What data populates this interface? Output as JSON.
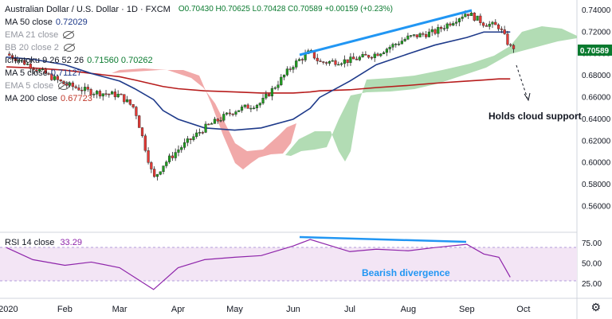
{
  "header": {
    "symbol": "Australian Dollar / U.S. Dollar · 1D · FXCM",
    "ohlc": "O0.70430 H0.70625 L0.70428 C0.70589 +0.00159 (+0.23%)"
  },
  "indicators": [
    {
      "name": "MA 50 close",
      "value": "0.72029",
      "color": "#1e3a8a",
      "hidden": false
    },
    {
      "name": "EMA 21 close",
      "value": "",
      "color": "#9598a1",
      "hidden": true
    },
    {
      "name": "BB 20 close 2",
      "value": "",
      "color": "#9598a1",
      "hidden": true
    },
    {
      "name": "Ichimoku 9 26 52 26",
      "value": "0.71560  0.70262",
      "color": "#0a7a2f",
      "hidden": false
    },
    {
      "name": "MA 5 close",
      "value": "0.71127",
      "color": "#1e3a8a",
      "hidden": false
    },
    {
      "name": "EMA 5 close",
      "value": "",
      "color": "#9598a1",
      "hidden": true
    },
    {
      "name": "MA 200 close",
      "value": "0.67723",
      "color": "#c0392b",
      "hidden": false
    }
  ],
  "rsi": {
    "name": "RSI 14 close",
    "value": "33.29"
  },
  "annotations": {
    "cloud": "Holds cloud support",
    "divergence": "Bearish divergence"
  },
  "price_tag": "0.70589",
  "colors": {
    "up": "#26a69a",
    "candle_up": "#1f9d1f",
    "candle_down": "#e53935",
    "trendline": "#2196f3",
    "ma50": "#1e3a8a",
    "ma200": "#b71c1c",
    "cloud_bull": "#a5d6a7",
    "cloud_bear": "#ef9a9a",
    "rsi_line": "#8e24aa",
    "rsi_band": "#f3e5f5"
  },
  "chart_data": [
    {
      "type": "candlestick",
      "title": "Australian Dollar / U.S. Dollar · 1D · FXCM",
      "x": [
        "2020-01-01",
        "2020-01-15",
        "2020-02-01",
        "2020-02-15",
        "2020-03-01",
        "2020-03-09",
        "2020-03-19",
        "2020-03-24",
        "2020-04-01",
        "2020-04-15",
        "2020-05-01",
        "2020-05-15",
        "2020-06-01",
        "2020-06-10",
        "2020-06-15",
        "2020-07-01",
        "2020-07-15",
        "2020-08-01",
        "2020-08-15",
        "2020-09-01",
        "2020-09-10",
        "2020-09-18",
        "2020-09-24"
      ],
      "close": [
        0.7,
        0.688,
        0.672,
        0.665,
        0.662,
        0.65,
        0.585,
        0.598,
        0.612,
        0.632,
        0.648,
        0.655,
        0.69,
        0.702,
        0.692,
        0.694,
        0.7,
        0.715,
        0.72,
        0.738,
        0.728,
        0.725,
        0.706
      ],
      "ma50": [
        0.697,
        0.695,
        0.69,
        0.682,
        0.675,
        0.668,
        0.658,
        0.648,
        0.64,
        0.632,
        0.63,
        0.632,
        0.64,
        0.65,
        0.66,
        0.675,
        0.69,
        0.7,
        0.708,
        0.715,
        0.72,
        0.72,
        0.72
      ],
      "ma200": [
        0.688,
        0.687,
        0.685,
        0.682,
        0.679,
        0.676,
        0.672,
        0.67,
        0.668,
        0.666,
        0.665,
        0.664,
        0.664,
        0.665,
        0.666,
        0.667,
        0.669,
        0.671,
        0.673,
        0.675,
        0.676,
        0.677,
        0.677
      ],
      "ylim": [
        0.545,
        0.745
      ],
      "yticks": [
        "0.74000",
        "0.72000",
        "0.70000",
        "0.68000",
        "0.66000",
        "0.64000",
        "0.62000",
        "0.60000",
        "0.58000",
        "0.56000"
      ]
    },
    {
      "type": "line",
      "title": "RSI 14 close",
      "x": [
        "2020-01-01",
        "2020-01-15",
        "2020-02-01",
        "2020-02-15",
        "2020-03-01",
        "2020-03-19",
        "2020-04-01",
        "2020-04-15",
        "2020-05-01",
        "2020-05-15",
        "2020-06-01",
        "2020-06-10",
        "2020-07-01",
        "2020-07-15",
        "2020-08-01",
        "2020-08-15",
        "2020-09-01",
        "2020-09-10",
        "2020-09-18",
        "2020-09-24"
      ],
      "values": [
        70,
        55,
        48,
        52,
        45,
        18,
        45,
        55,
        58,
        60,
        72,
        80,
        65,
        68,
        66,
        70,
        74,
        62,
        58,
        33.29
      ],
      "ylim": [
        10,
        85
      ],
      "yticks": [
        "75.00",
        "50.00",
        "25.00"
      ]
    }
  ],
  "x_axis": [
    "2020",
    "Feb",
    "Mar",
    "Apr",
    "May",
    "Jun",
    "Jul",
    "Aug",
    "Sep",
    "Oct"
  ]
}
